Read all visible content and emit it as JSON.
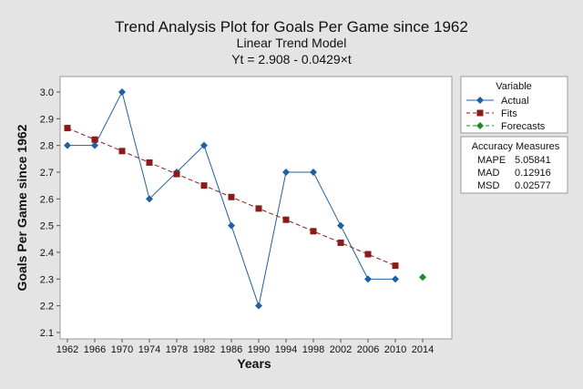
{
  "chart_data": {
    "type": "line",
    "title": "Trend Analysis Plot for Goals Per Game since 1962",
    "subtitle": "Linear Trend Model",
    "equation": "Yt = 2.908 - 0.0429×t",
    "xlabel": "Years",
    "ylabel": "Goals Per Game since 1962",
    "x": [
      "1962",
      "1966",
      "1970",
      "1974",
      "1978",
      "1982",
      "1986",
      "1990",
      "1994",
      "1998",
      "2002",
      "2006",
      "2010",
      "2014"
    ],
    "xlim": [
      1962,
      2014
    ],
    "ylim": [
      2.1,
      3.0
    ],
    "yticks": [
      2.1,
      2.2,
      2.3,
      2.4,
      2.5,
      2.6,
      2.7,
      2.8,
      2.9,
      3.0
    ],
    "grid": false,
    "legend_title": "Variable",
    "legend_position": "right",
    "series": [
      {
        "name": "Actual",
        "style": "solid line, diamond markers",
        "color": "#2060a0",
        "x": [
          1962,
          1966,
          1970,
          1974,
          1978,
          1982,
          1986,
          1990,
          1994,
          1998,
          2002,
          2006,
          2010
        ],
        "values": [
          2.8,
          2.8,
          3.0,
          2.6,
          2.7,
          2.8,
          2.5,
          2.2,
          2.7,
          2.7,
          2.5,
          2.3,
          2.3
        ]
      },
      {
        "name": "Fits",
        "style": "dashed line, square markers",
        "color": "#8b1a1a",
        "x": [
          1962,
          1966,
          1970,
          1974,
          1978,
          1982,
          1986,
          1990,
          1994,
          1998,
          2002,
          2006,
          2010
        ],
        "values": [
          2.865,
          2.822,
          2.779,
          2.736,
          2.693,
          2.65,
          2.607,
          2.564,
          2.522,
          2.479,
          2.436,
          2.393,
          2.35
        ]
      },
      {
        "name": "Forecasts",
        "style": "dashed line, diamond markers",
        "color": "#1a8a2a",
        "x": [
          2014
        ],
        "values": [
          2.307
        ]
      }
    ],
    "accuracy": {
      "title": "Accuracy Measures",
      "rows": [
        {
          "label": "MAPE",
          "value": "5.05841"
        },
        {
          "label": "MAD",
          "value": "0.12916"
        },
        {
          "label": "MSD",
          "value": "0.02577"
        }
      ]
    }
  }
}
